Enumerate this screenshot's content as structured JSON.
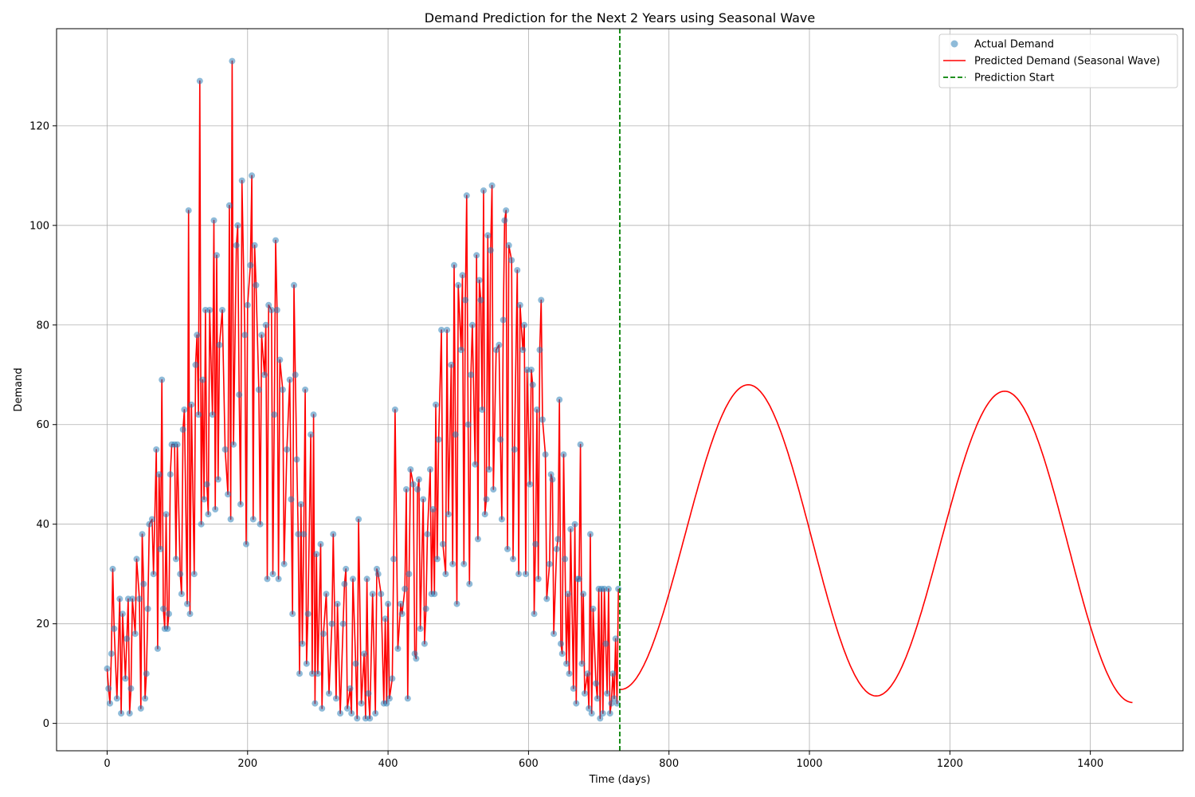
{
  "chart_data": {
    "type": "line",
    "title": "Demand Prediction for the Next 2 Years using Seasonal Wave",
    "xlabel": "Time (days)",
    "ylabel": "Demand",
    "xlim": [
      -72,
      1532
    ],
    "ylim": [
      -5.5,
      139.5
    ],
    "xticks": [
      0,
      200,
      400,
      600,
      800,
      1000,
      1200,
      1400
    ],
    "yticks": [
      0,
      20,
      40,
      60,
      80,
      100,
      120
    ],
    "grid": true,
    "legend_position": "top-right",
    "prediction_start": 730,
    "series": [
      {
        "name": "Actual Demand",
        "kind": "scatter",
        "color": "#1f77b4",
        "x_range": [
          0,
          729
        ],
        "points": [
          [
            0,
            11
          ],
          [
            2,
            7
          ],
          [
            4,
            4
          ],
          [
            6,
            14
          ],
          [
            8,
            31
          ],
          [
            10,
            19
          ],
          [
            14,
            5
          ],
          [
            18,
            25
          ],
          [
            20,
            2
          ],
          [
            22,
            22
          ],
          [
            26,
            9
          ],
          [
            28,
            17
          ],
          [
            30,
            25
          ],
          [
            32,
            2
          ],
          [
            34,
            7
          ],
          [
            36,
            25
          ],
          [
            40,
            18
          ],
          [
            42,
            33
          ],
          [
            46,
            25
          ],
          [
            48,
            3
          ],
          [
            50,
            38
          ],
          [
            52,
            28
          ],
          [
            54,
            5
          ],
          [
            56,
            10
          ],
          [
            58,
            23
          ],
          [
            60,
            40
          ],
          [
            64,
            41
          ],
          [
            66,
            30
          ],
          [
            70,
            55
          ],
          [
            72,
            15
          ],
          [
            74,
            50
          ],
          [
            76,
            35
          ],
          [
            78,
            69
          ],
          [
            80,
            23
          ],
          [
            82,
            19
          ],
          [
            84,
            42
          ],
          [
            86,
            19
          ],
          [
            88,
            22
          ],
          [
            90,
            50
          ],
          [
            92,
            56
          ],
          [
            96,
            56
          ],
          [
            98,
            33
          ],
          [
            100,
            56
          ],
          [
            104,
            30
          ],
          [
            106,
            26
          ],
          [
            108,
            59
          ],
          [
            110,
            63
          ],
          [
            114,
            24
          ],
          [
            116,
            103
          ],
          [
            118,
            22
          ],
          [
            120,
            64
          ],
          [
            124,
            30
          ],
          [
            126,
            72
          ],
          [
            128,
            78
          ],
          [
            130,
            62
          ],
          [
            132,
            129
          ],
          [
            134,
            40
          ],
          [
            136,
            69
          ],
          [
            138,
            45
          ],
          [
            140,
            83
          ],
          [
            142,
            48
          ],
          [
            144,
            42
          ],
          [
            146,
            83
          ],
          [
            150,
            62
          ],
          [
            152,
            101
          ],
          [
            154,
            43
          ],
          [
            156,
            94
          ],
          [
            158,
            49
          ],
          [
            160,
            76
          ],
          [
            164,
            83
          ],
          [
            168,
            55
          ],
          [
            172,
            46
          ],
          [
            174,
            104
          ],
          [
            176,
            41
          ],
          [
            178,
            133
          ],
          [
            180,
            56
          ],
          [
            184,
            96
          ],
          [
            186,
            100
          ],
          [
            188,
            66
          ],
          [
            190,
            44
          ],
          [
            192,
            109
          ],
          [
            196,
            78
          ],
          [
            198,
            36
          ],
          [
            200,
            84
          ],
          [
            204,
            92
          ],
          [
            206,
            110
          ],
          [
            208,
            41
          ],
          [
            210,
            96
          ],
          [
            212,
            88
          ],
          [
            216,
            67
          ],
          [
            218,
            40
          ],
          [
            220,
            78
          ],
          [
            224,
            70
          ],
          [
            226,
            80
          ],
          [
            228,
            29
          ],
          [
            230,
            84
          ],
          [
            234,
            83
          ],
          [
            236,
            30
          ],
          [
            238,
            62
          ],
          [
            240,
            97
          ],
          [
            242,
            83
          ],
          [
            244,
            29
          ],
          [
            246,
            73
          ],
          [
            250,
            67
          ],
          [
            252,
            32
          ],
          [
            256,
            55
          ],
          [
            260,
            69
          ],
          [
            262,
            45
          ],
          [
            264,
            22
          ],
          [
            266,
            88
          ],
          [
            268,
            70
          ],
          [
            270,
            53
          ],
          [
            272,
            38
          ],
          [
            274,
            10
          ],
          [
            276,
            44
          ],
          [
            278,
            16
          ],
          [
            280,
            38
          ],
          [
            282,
            67
          ],
          [
            284,
            12
          ],
          [
            286,
            22
          ],
          [
            290,
            58
          ],
          [
            292,
            10
          ],
          [
            294,
            62
          ],
          [
            296,
            4
          ],
          [
            298,
            34
          ],
          [
            300,
            10
          ],
          [
            304,
            36
          ],
          [
            306,
            3
          ],
          [
            308,
            18
          ],
          [
            312,
            26
          ],
          [
            316,
            6
          ],
          [
            320,
            20
          ],
          [
            322,
            38
          ],
          [
            326,
            5
          ],
          [
            328,
            24
          ],
          [
            332,
            2
          ],
          [
            336,
            20
          ],
          [
            338,
            28
          ],
          [
            340,
            31
          ],
          [
            342,
            3
          ],
          [
            346,
            7
          ],
          [
            348,
            2
          ],
          [
            350,
            29
          ],
          [
            354,
            12
          ],
          [
            356,
            1
          ],
          [
            358,
            41
          ],
          [
            362,
            4
          ],
          [
            366,
            14
          ],
          [
            368,
            1
          ],
          [
            370,
            29
          ],
          [
            372,
            6
          ],
          [
            374,
            1
          ],
          [
            378,
            26
          ],
          [
            382,
            2
          ],
          [
            384,
            31
          ],
          [
            386,
            30
          ],
          [
            390,
            26
          ],
          [
            394,
            4
          ],
          [
            396,
            21
          ],
          [
            398,
            4
          ],
          [
            400,
            24
          ],
          [
            402,
            5
          ],
          [
            406,
            9
          ],
          [
            408,
            33
          ],
          [
            410,
            63
          ],
          [
            414,
            15
          ],
          [
            418,
            24
          ],
          [
            420,
            22
          ],
          [
            424,
            27
          ],
          [
            426,
            47
          ],
          [
            428,
            5
          ],
          [
            430,
            30
          ],
          [
            432,
            51
          ],
          [
            436,
            48
          ],
          [
            438,
            14
          ],
          [
            440,
            13
          ],
          [
            442,
            47
          ],
          [
            444,
            49
          ],
          [
            446,
            19
          ],
          [
            450,
            45
          ],
          [
            452,
            16
          ],
          [
            454,
            23
          ],
          [
            456,
            38
          ],
          [
            460,
            51
          ],
          [
            462,
            26
          ],
          [
            464,
            43
          ],
          [
            466,
            26
          ],
          [
            468,
            64
          ],
          [
            470,
            33
          ],
          [
            472,
            57
          ],
          [
            476,
            79
          ],
          [
            478,
            36
          ],
          [
            482,
            30
          ],
          [
            484,
            79
          ],
          [
            486,
            42
          ],
          [
            490,
            72
          ],
          [
            492,
            32
          ],
          [
            494,
            92
          ],
          [
            496,
            58
          ],
          [
            498,
            24
          ],
          [
            500,
            88
          ],
          [
            504,
            75
          ],
          [
            506,
            90
          ],
          [
            508,
            32
          ],
          [
            510,
            85
          ],
          [
            512,
            106
          ],
          [
            514,
            60
          ],
          [
            516,
            28
          ],
          [
            518,
            70
          ],
          [
            520,
            80
          ],
          [
            524,
            52
          ],
          [
            526,
            94
          ],
          [
            528,
            37
          ],
          [
            530,
            89
          ],
          [
            532,
            85
          ],
          [
            534,
            63
          ],
          [
            536,
            107
          ],
          [
            538,
            42
          ],
          [
            540,
            45
          ],
          [
            542,
            98
          ],
          [
            544,
            51
          ],
          [
            546,
            95
          ],
          [
            548,
            108
          ],
          [
            550,
            47
          ],
          [
            554,
            75
          ],
          [
            558,
            76
          ],
          [
            560,
            57
          ],
          [
            562,
            41
          ],
          [
            564,
            81
          ],
          [
            566,
            101
          ],
          [
            568,
            103
          ],
          [
            570,
            35
          ],
          [
            572,
            96
          ],
          [
            576,
            93
          ],
          [
            578,
            33
          ],
          [
            580,
            55
          ],
          [
            584,
            91
          ],
          [
            586,
            30
          ],
          [
            588,
            84
          ],
          [
            592,
            75
          ],
          [
            594,
            80
          ],
          [
            596,
            30
          ],
          [
            598,
            71
          ],
          [
            602,
            48
          ],
          [
            604,
            71
          ],
          [
            606,
            68
          ],
          [
            608,
            22
          ],
          [
            610,
            36
          ],
          [
            612,
            63
          ],
          [
            614,
            29
          ],
          [
            616,
            75
          ],
          [
            618,
            85
          ],
          [
            620,
            61
          ],
          [
            624,
            54
          ],
          [
            626,
            25
          ],
          [
            630,
            32
          ],
          [
            632,
            50
          ],
          [
            634,
            49
          ],
          [
            636,
            18
          ],
          [
            640,
            35
          ],
          [
            642,
            37
          ],
          [
            644,
            65
          ],
          [
            646,
            16
          ],
          [
            648,
            14
          ],
          [
            650,
            54
          ],
          [
            652,
            33
          ],
          [
            654,
            12
          ],
          [
            656,
            26
          ],
          [
            658,
            10
          ],
          [
            660,
            39
          ],
          [
            664,
            7
          ],
          [
            666,
            40
          ],
          [
            668,
            4
          ],
          [
            670,
            29
          ],
          [
            672,
            29
          ],
          [
            674,
            56
          ],
          [
            676,
            12
          ],
          [
            678,
            26
          ],
          [
            680,
            6
          ],
          [
            684,
            10
          ],
          [
            686,
            3
          ],
          [
            688,
            38
          ],
          [
            690,
            2
          ],
          [
            692,
            23
          ],
          [
            696,
            8
          ],
          [
            698,
            5
          ],
          [
            700,
            27
          ],
          [
            702,
            1
          ],
          [
            704,
            27
          ],
          [
            706,
            2
          ],
          [
            708,
            27
          ],
          [
            710,
            16
          ],
          [
            712,
            6
          ],
          [
            714,
            27
          ],
          [
            716,
            2
          ],
          [
            718,
            4
          ],
          [
            720,
            10
          ],
          [
            722,
            5
          ],
          [
            724,
            17
          ],
          [
            726,
            4
          ],
          [
            728,
            27
          ]
        ]
      },
      {
        "name": "Predicted Demand (Seasonal Wave)",
        "kind": "line",
        "color": "#ff0000",
        "fit_on_actual": true,
        "forecast": {
          "x_start": 730,
          "x_end": 1460,
          "peak_x": 913,
          "peak_y": 68,
          "trough_x": 1095,
          "trough_y": 5.5,
          "peak2_x": 1278,
          "peak2_y": 66.7,
          "end_y": 4.2,
          "start_y": 6.8
        }
      },
      {
        "name": "Prediction Start",
        "kind": "vline",
        "color": "#008000",
        "x": 730
      }
    ]
  }
}
